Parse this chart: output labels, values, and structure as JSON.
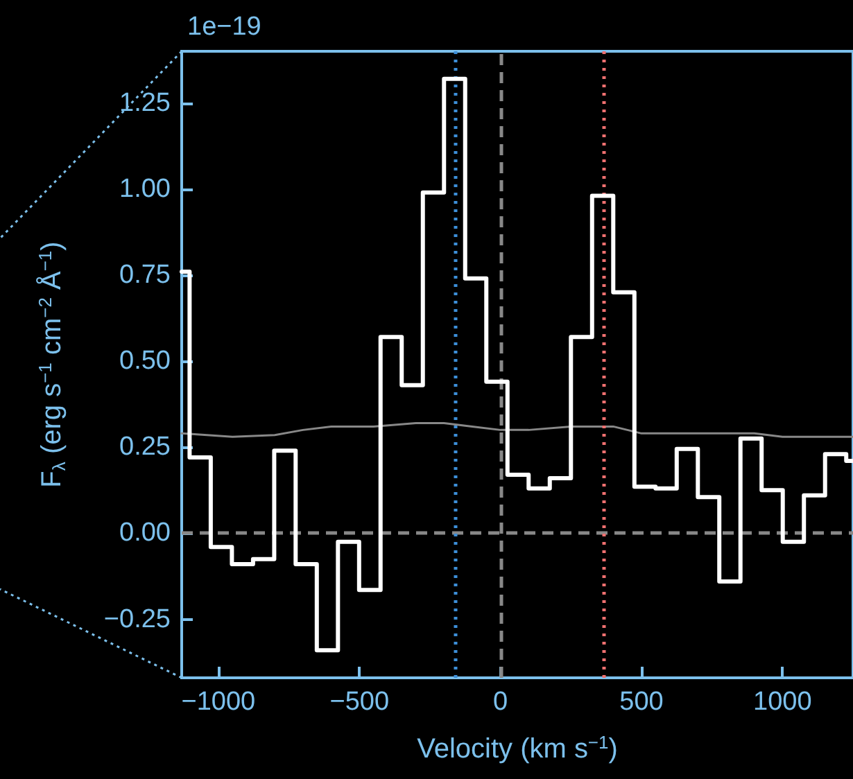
{
  "chart_data": {
    "type": "step",
    "xlabel": "Velocity (km s$^{−1}$)",
    "ylabel": "F$_{λ}$ (erg s$^{−1}$ cm$^{−2}$ Å$^{−1}$)",
    "annotations": [
      "1e−19"
    ],
    "xlim": [
      -1130,
      1250
    ],
    "ylim": [
      -0.42,
      1.4
    ],
    "xticks": [
      {
        "value": -1000,
        "label": "−1000"
      },
      {
        "value": -500,
        "label": "−500"
      },
      0,
      500,
      1000
    ],
    "yticks": [
      {
        "value": -0.25,
        "label": "−0.25"
      },
      {
        "value": 0,
        "label": "0.00"
      },
      {
        "value": 0.25,
        "label": "0.25"
      },
      {
        "value": 0.5,
        "label": "0.50"
      },
      {
        "value": 0.75,
        "label": "0.75"
      },
      {
        "value": 1,
        "label": "1.00"
      },
      {
        "value": 1.25,
        "label": "1.25"
      }
    ],
    "grid": false,
    "marker": "none",
    "series": [
      {
        "type": "step",
        "color": "#ffffff",
        "x": [
          -1130,
          -1102,
          -1027,
          -952,
          -877,
          -802,
          -726,
          -651,
          -576,
          -501,
          -425,
          -350,
          -275,
          -200,
          -125,
          -50,
          25,
          100,
          175,
          250,
          325,
          400,
          475,
          550,
          625,
          700,
          776,
          851,
          926,
          1001,
          1076,
          1151,
          1226,
          1250
        ],
        "values": [
          0.76,
          0.22,
          -0.04,
          -0.09,
          -0.075,
          0.24,
          -0.09,
          -0.34,
          -0.025,
          -0.165,
          0.57,
          0.43,
          0.99,
          1.32,
          0.74,
          0.44,
          0.17,
          0.13,
          0.16,
          0.57,
          0.98,
          0.7,
          0.135,
          0.13,
          0.245,
          0.105,
          -0.14,
          0.275,
          0.125,
          -0.025,
          0.11,
          0.23,
          0.21,
          0.21
        ]
      },
      {
        "type": "line",
        "color": "#888888",
        "x": [
          -1130,
          -950,
          -800,
          -700,
          -600,
          -450,
          -300,
          -200,
          -100,
          0,
          100,
          250,
          400,
          500,
          750,
          900,
          1000,
          1250
        ],
        "values": [
          0.29,
          0.28,
          0.285,
          0.3,
          0.31,
          0.31,
          0.32,
          0.32,
          0.31,
          0.3,
          0.3,
          0.31,
          0.31,
          0.29,
          0.29,
          0.29,
          0.28,
          0.28
        ]
      }
    ],
    "ref_lines": [
      {
        "axis": "y",
        "value": 0,
        "color": "#888888",
        "line_style": "dashed"
      },
      {
        "axis": "x",
        "value": 0,
        "color": "#888888",
        "line_style": "dashed"
      },
      {
        "axis": "x",
        "value": -160,
        "color": "#3d8fd9",
        "line_style": "dotted"
      },
      {
        "axis": "x",
        "value": 365,
        "color": "#f07070",
        "line_style": "dotted"
      }
    ]
  }
}
